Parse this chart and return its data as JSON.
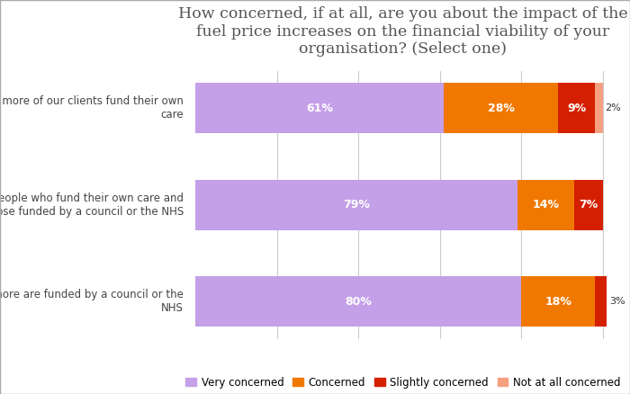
{
  "title": "How concerned, if at all, are you about the impact of the\nfuel price increases on the financial viability of your\norganisation? (Select one)",
  "categories": [
    "Two thirds or more of our clients fund their own\ncare",
    "A mixture of people who fund their own care and\nthose funded by a council or the NHS",
    "Two thirds or more are funded by a council or the\nNHS"
  ],
  "series": {
    "Very concerned": [
      61,
      79,
      80
    ],
    "Concerned": [
      28,
      14,
      18
    ],
    "Slightly concerned": [
      9,
      7,
      3
    ],
    "Not at all concerned": [
      2,
      0,
      0
    ]
  },
  "colors": {
    "Very concerned": "#c4a0e8",
    "Concerned": "#f07800",
    "Slightly concerned": "#d42000",
    "Not at all concerned": "#f5a080"
  },
  "legend_labels": [
    "Very concerned",
    "Concerned",
    "Slightly concerned",
    "Not at all concerned"
  ],
  "bar_height": 0.52,
  "background_color": "#ffffff",
  "grid_color": "#cccccc",
  "title_fontsize": 12.5,
  "label_fontsize": 9,
  "tick_fontsize": 8.5,
  "legend_fontsize": 8.5
}
